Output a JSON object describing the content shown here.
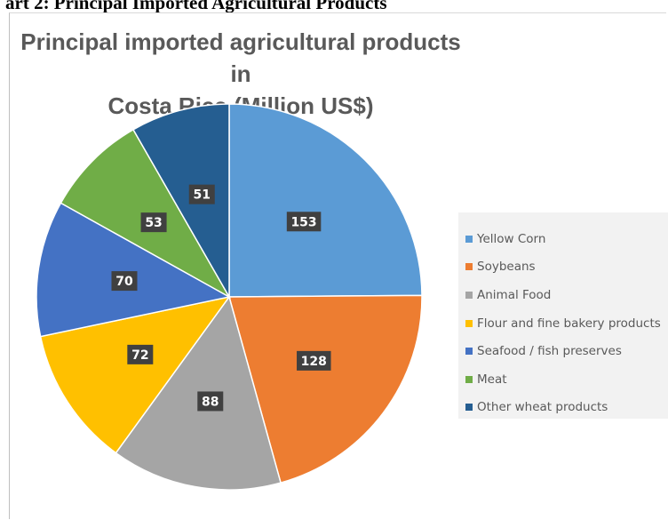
{
  "page_header": "art 2:  Principal Imported Agricultural Products",
  "chart_data": {
    "type": "pie",
    "title_line1": "Principal imported agricultural products in",
    "title_line2": "Costa Rica (Million US$)",
    "categories": [
      "Yellow Corn",
      "Soybeans",
      "Animal Food",
      "Flour and fine bakery products",
      "Seafood / fish preserves",
      "Meat",
      "Other wheat products"
    ],
    "values": [
      153,
      128,
      88,
      72,
      70,
      53,
      51
    ],
    "colors": [
      "#5b9bd5",
      "#ed7d31",
      "#a5a5a5",
      "#ffc000",
      "#4472c4",
      "#70ad47",
      "#255e91"
    ],
    "legend_position": "right",
    "data_labels": true
  }
}
